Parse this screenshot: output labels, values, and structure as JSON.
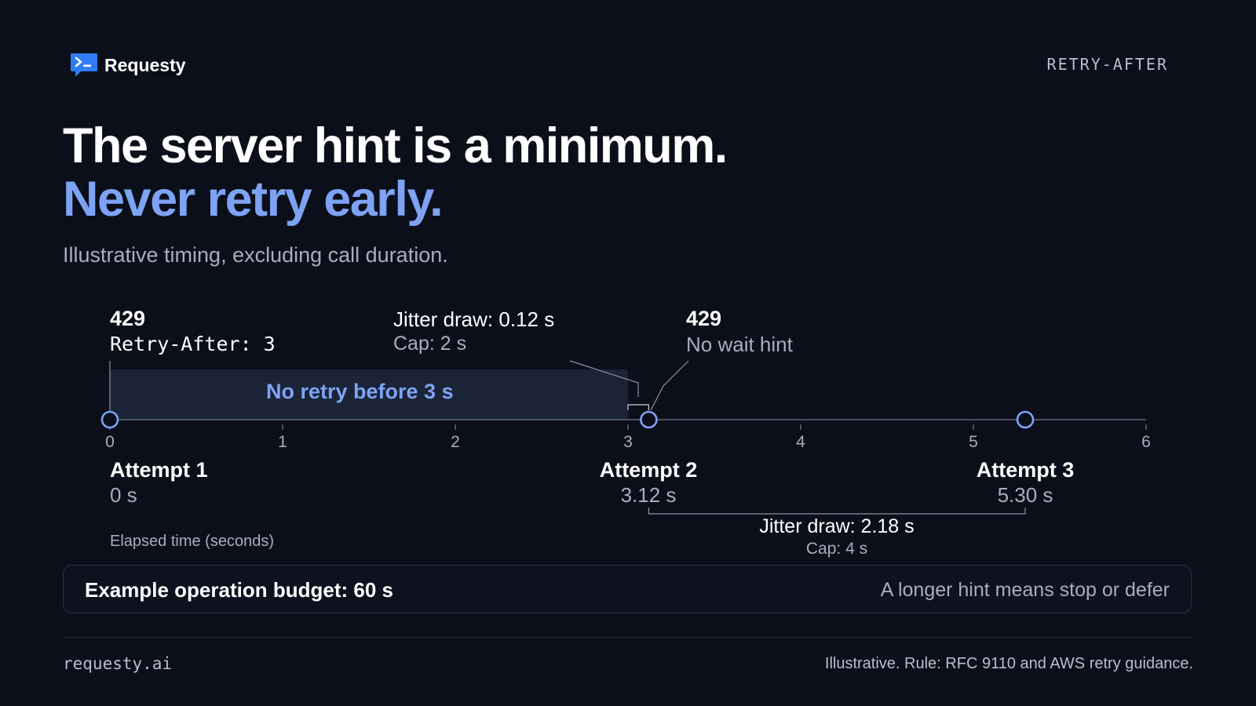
{
  "brand": {
    "name": "Requesty",
    "logo_icon": "terminal-chat-icon",
    "logo_color": "#2f7cf6"
  },
  "page_tag": "RETRY-AFTER",
  "headline": {
    "line1": "The server hint is a minimum.",
    "line2": "Never retry early."
  },
  "subtitle": "Illustrative timing, excluding call duration.",
  "timeline": {
    "axis_label": "Elapsed time (seconds)",
    "axis_range": [
      0,
      6
    ],
    "ticks": [
      "0",
      "1",
      "2",
      "3",
      "4",
      "5",
      "6"
    ],
    "blocked_window": {
      "start": 0,
      "end": 3,
      "label": "No retry before 3 s"
    },
    "attempts": [
      {
        "name": "Attempt 1",
        "time": 0,
        "time_label": "0 s"
      },
      {
        "name": "Attempt 2",
        "time": 3.12,
        "time_label": "3.12 s"
      },
      {
        "name": "Attempt 3",
        "time": 5.3,
        "time_label": "5.30 s"
      }
    ],
    "responses": [
      {
        "status": "429",
        "detail": "Retry-After: 3"
      },
      {
        "status": "429",
        "detail": "No wait hint"
      }
    ],
    "jitters": [
      {
        "draw": "Jitter draw: 0.12 s",
        "cap": "Cap: 2 s",
        "from": 3,
        "to": 3.12
      },
      {
        "draw": "Jitter draw: 2.18 s",
        "cap": "Cap: 4 s",
        "from": 3.12,
        "to": 5.3
      }
    ]
  },
  "budget": {
    "text": "Example operation budget: 60 s",
    "note": "A longer hint means stop or defer"
  },
  "footer": {
    "site": "requesty.ai",
    "note": "Illustrative. Rule: RFC 9110 and AWS retry guidance."
  },
  "colors": {
    "background": "#0b0f1a",
    "accent": "#7ea3f4",
    "window_fill": "#1a2436",
    "muted_text": "#a7aebd"
  }
}
